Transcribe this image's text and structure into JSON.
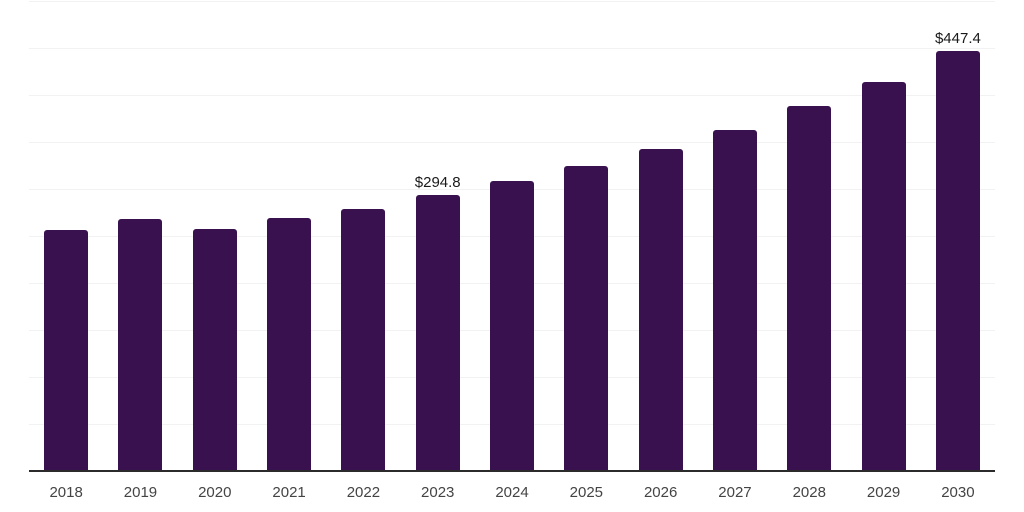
{
  "chart_data": {
    "type": "bar",
    "title": "",
    "xlabel": "",
    "ylabel": "",
    "categories": [
      "2018",
      "2019",
      "2020",
      "2021",
      "2022",
      "2023",
      "2024",
      "2025",
      "2026",
      "2027",
      "2028",
      "2029",
      "2030"
    ],
    "values": [
      257,
      269,
      258,
      270,
      280,
      294.8,
      310,
      326,
      344,
      364,
      389,
      415,
      447.4
    ],
    "data_labels": [
      "",
      "",
      "",
      "",
      "",
      "$294.8",
      "",
      "",
      "",
      "",
      "",
      "",
      "$447.4"
    ],
    "ylim": [
      0,
      500
    ],
    "gridline_step": 50,
    "grid": "horizontal",
    "legend_position": "none",
    "colors": {
      "background": "#ffffff",
      "bar": "#38114e",
      "gridline": "#f2f2f2",
      "axis_line": "#2b2b2b",
      "tick_label": "#444444",
      "value_label": "#1a1a1a"
    }
  }
}
